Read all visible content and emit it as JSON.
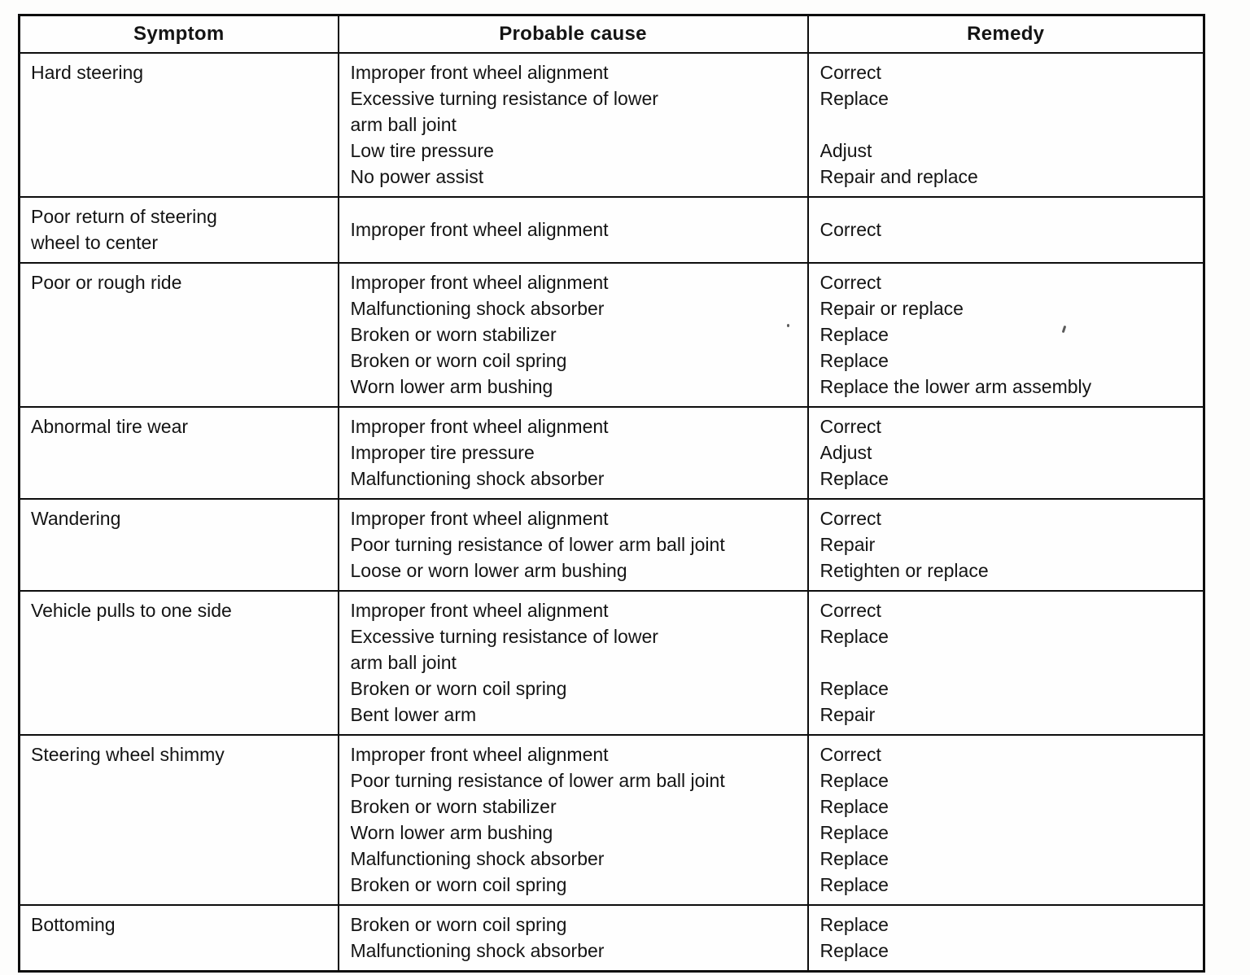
{
  "colors": {
    "ink": "#141414",
    "border": "#0d0d0d",
    "paper": "#fdfdfc"
  },
  "table": {
    "headers": [
      "Symptom",
      "Probable cause",
      "Remedy"
    ],
    "rows": [
      {
        "symptom": [
          "Hard steering"
        ],
        "lines": [
          {
            "cause": "Improper front wheel alignment",
            "remedy": "Correct"
          },
          {
            "cause": "Excessive turning resistance of lower",
            "remedy": "Replace"
          },
          {
            "cause": "arm ball joint",
            "remedy": ""
          },
          {
            "cause": "Low tire pressure",
            "remedy": "Adjust"
          },
          {
            "cause": "No power assist",
            "remedy": "Repair and replace"
          }
        ]
      },
      {
        "symptom": [
          "Poor return of steering",
          "wheel to center"
        ],
        "lines": [
          {
            "cause": "Improper front wheel alignment",
            "remedy": "Correct"
          }
        ]
      },
      {
        "symptom": [
          "Poor or rough ride"
        ],
        "lines": [
          {
            "cause": "Improper front wheel alignment",
            "remedy": "Correct"
          },
          {
            "cause": "Malfunctioning shock absorber",
            "remedy": "Repair or replace"
          },
          {
            "cause": "Broken or worn stabilizer",
            "remedy": "Replace"
          },
          {
            "cause": "Broken or worn coil spring",
            "remedy": "Replace"
          },
          {
            "cause": "Worn lower arm bushing",
            "remedy": "Replace the lower arm assembly"
          }
        ]
      },
      {
        "symptom": [
          "Abnormal tire wear"
        ],
        "lines": [
          {
            "cause": "Improper front wheel alignment",
            "remedy": "Correct"
          },
          {
            "cause": "Improper tire pressure",
            "remedy": "Adjust"
          },
          {
            "cause": "Malfunctioning shock absorber",
            "remedy": "Replace"
          }
        ]
      },
      {
        "symptom": [
          "Wandering"
        ],
        "lines": [
          {
            "cause": "Improper front wheel alignment",
            "remedy": "Correct"
          },
          {
            "cause": "Poor turning resistance of lower arm ball joint",
            "remedy": "Repair"
          },
          {
            "cause": "Loose or worn lower arm bushing",
            "remedy": "Retighten or replace"
          }
        ]
      },
      {
        "symptom": [
          "Vehicle pulls to one side"
        ],
        "lines": [
          {
            "cause": "Improper front wheel alignment",
            "remedy": "Correct"
          },
          {
            "cause": "Excessive turning resistance of lower",
            "remedy": "Replace"
          },
          {
            "cause": "arm ball joint",
            "remedy": ""
          },
          {
            "cause": "Broken or worn coil spring",
            "remedy": "Replace"
          },
          {
            "cause": "Bent lower arm",
            "remedy": "Repair"
          }
        ]
      },
      {
        "symptom": [
          "Steering wheel shimmy"
        ],
        "lines": [
          {
            "cause": "Improper front wheel alignment",
            "remedy": "Correct"
          },
          {
            "cause": "Poor turning resistance of lower arm ball joint",
            "remedy": "Replace"
          },
          {
            "cause": "Broken or worn stabilizer",
            "remedy": "Replace"
          },
          {
            "cause": "Worn lower arm bushing",
            "remedy": "Replace"
          },
          {
            "cause": "Malfunctioning shock absorber",
            "remedy": "Replace"
          },
          {
            "cause": "Broken or worn coil spring",
            "remedy": "Replace"
          }
        ]
      },
      {
        "symptom": [
          "Bottoming"
        ],
        "lines": [
          {
            "cause": "Broken or worn coil spring",
            "remedy": "Replace"
          },
          {
            "cause": "Malfunctioning shock absorber",
            "remedy": "Replace"
          }
        ]
      }
    ]
  }
}
